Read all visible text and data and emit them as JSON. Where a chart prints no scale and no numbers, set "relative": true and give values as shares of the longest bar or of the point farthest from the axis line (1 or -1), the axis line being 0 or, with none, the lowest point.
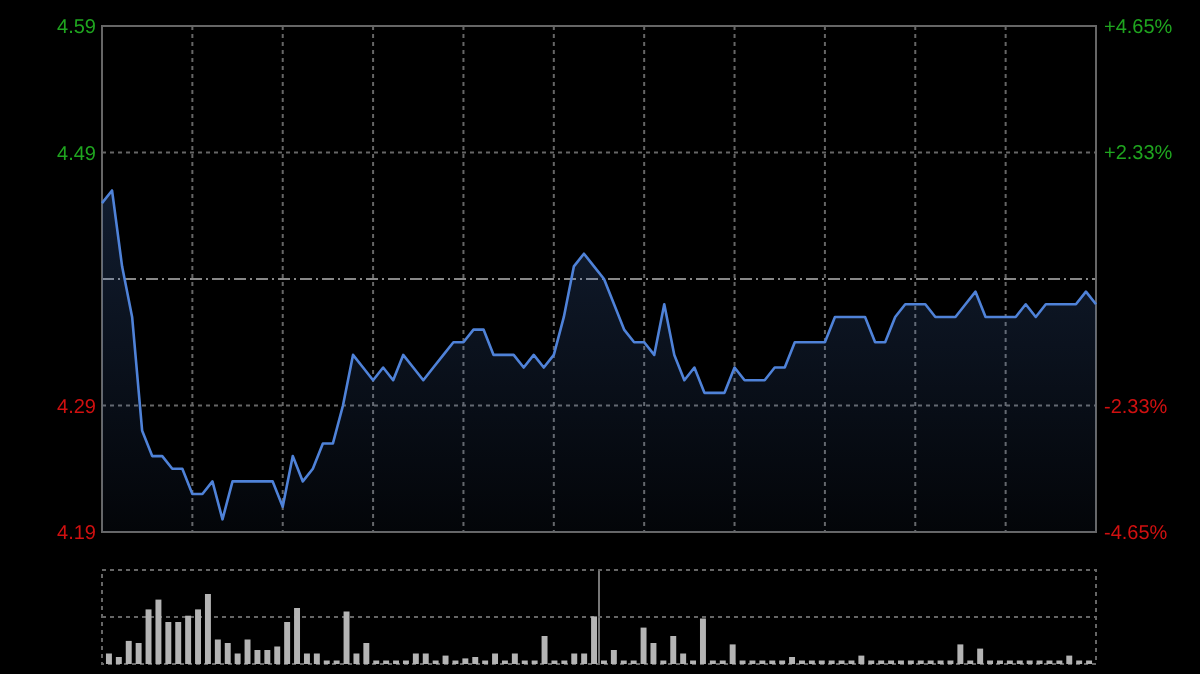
{
  "chart_data": [
    {
      "type": "area",
      "categories": [
        null,
        null,
        null,
        null,
        null,
        null,
        null,
        null,
        null,
        null,
        null,
        null,
        null,
        null,
        null,
        null,
        null,
        null,
        null,
        null,
        null,
        null,
        null,
        null,
        null,
        null,
        null,
        null,
        null,
        null,
        null,
        null,
        null,
        null,
        null,
        null,
        null,
        null,
        null,
        null,
        null,
        null,
        null,
        null,
        null,
        null,
        null,
        null,
        null,
        null,
        null,
        null,
        null,
        null,
        null,
        null,
        null,
        null,
        null,
        null,
        null,
        null,
        null,
        null,
        null,
        null,
        null,
        null,
        null,
        null,
        null,
        null,
        null,
        null,
        null,
        null,
        null,
        null,
        null,
        null,
        null,
        null,
        null,
        null,
        null,
        null,
        null,
        null,
        null,
        null,
        null,
        null,
        null,
        null,
        null,
        null,
        null,
        null,
        null,
        null
      ],
      "series": [
        {
          "color": "#4f82d8",
          "values": [
            4.45,
            4.46,
            4.4,
            4.36,
            4.27,
            4.25,
            4.25,
            4.24,
            4.24,
            4.22,
            4.22,
            4.23,
            4.2,
            4.23,
            4.23,
            4.23,
            4.23,
            4.23,
            4.21,
            4.25,
            4.23,
            4.24,
            4.26,
            4.26,
            4.29,
            4.33,
            4.32,
            4.31,
            4.32,
            4.31,
            4.33,
            4.32,
            4.31,
            4.32,
            4.33,
            4.34,
            4.34,
            4.35,
            4.35,
            4.33,
            4.33,
            4.33,
            4.32,
            4.33,
            4.32,
            4.33,
            4.36,
            4.4,
            4.41,
            4.4,
            4.39,
            4.37,
            4.35,
            4.34,
            4.34,
            4.33,
            4.37,
            4.33,
            4.31,
            4.32,
            4.3,
            4.3,
            4.3,
            4.32,
            4.31,
            4.31,
            4.31,
            4.32,
            4.32,
            4.34,
            4.34,
            4.34,
            4.34,
            4.36,
            4.36,
            4.36,
            4.36,
            4.34,
            4.34,
            4.36,
            4.37,
            4.37,
            4.37,
            4.36,
            4.36,
            4.36,
            4.37,
            4.38,
            4.36,
            4.36,
            4.36,
            4.36,
            4.37,
            4.36,
            4.37,
            4.37,
            4.37,
            4.37,
            4.38,
            4.37
          ]
        }
      ],
      "ylim": [
        4.19,
        4.59
      ],
      "yticks": [
        4.19,
        4.29,
        4.49,
        4.59
      ],
      "ref_lines": [
        {
          "axis": "y",
          "value": 4.39,
          "line_style": "dashed",
          "color": "#888888"
        }
      ],
      "y2lim": [
        -4.65,
        4.65
      ],
      "y2ticks": [
        {
          "value": -4.65,
          "label": "-4.65%"
        },
        {
          "value": -2.33,
          "label": "-2.33%"
        },
        {
          "value": 2.33,
          "label": "+2.33%"
        },
        {
          "value": 4.65,
          "label": "+4.65%"
        }
      ],
      "grid": true
    },
    {
      "type": "bar",
      "relative": true,
      "grid": true,
      "ref_lines": [
        {
          "axis": "y",
          "value": 0.67,
          "line_style": "dotted",
          "color": "#666666"
        }
      ],
      "categories": [
        null,
        null,
        null,
        null,
        null,
        null,
        null,
        null,
        null,
        null,
        null,
        null,
        null,
        null,
        null,
        null,
        null,
        null,
        null,
        null,
        null,
        null,
        null,
        null,
        null,
        null,
        null,
        null,
        null,
        null,
        null,
        null,
        null,
        null,
        null,
        null,
        null,
        null,
        null,
        null,
        null,
        null,
        null,
        null,
        null,
        null,
        null,
        null,
        null,
        null,
        null,
        null,
        null,
        null,
        null,
        null,
        null,
        null,
        null,
        null,
        null,
        null,
        null,
        null,
        null,
        null,
        null,
        null,
        null,
        null,
        null,
        null,
        null,
        null,
        null,
        null,
        null,
        null,
        null,
        null,
        null,
        null,
        null,
        null,
        null,
        null,
        null,
        null,
        null,
        null,
        null,
        null,
        null,
        null,
        null,
        null,
        null,
        null,
        null,
        null
      ],
      "series": [
        {
          "color": "#b4b4b4",
          "values": [
            0.15,
            0.1,
            0.33,
            0.3,
            0.78,
            0.92,
            0.6,
            0.6,
            0.69,
            0.78,
            1,
            0.35,
            0.3,
            0.15,
            0.35,
            0.2,
            0.2,
            0.25,
            0.6,
            0.8,
            0.15,
            0.15,
            0.05,
            0.05,
            0.75,
            0.15,
            0.3,
            0.05,
            0.05,
            0.05,
            0.05,
            0.15,
            0.15,
            0.05,
            0.12,
            0.05,
            0.08,
            0.1,
            0.05,
            0.15,
            0.05,
            0.15,
            0.05,
            0.05,
            0.4,
            0.05,
            0.05,
            0.15,
            0.15,
            0.68,
            0.05,
            0.2,
            0.05,
            0.05,
            0.52,
            0.3,
            0.05,
            0.4,
            0.15,
            0.05,
            0.65,
            0.05,
            0.05,
            0.28,
            0.05,
            0.05,
            0.05,
            0.05,
            0.05,
            0.1,
            0.05,
            0.05,
            0.05,
            0.05,
            0.05,
            0.05,
            0.12,
            0.05,
            0.05,
            0.05,
            0.05,
            0.05,
            0.05,
            0.05,
            0.05,
            0.05,
            0.28,
            0.05,
            0.22,
            0.05,
            0.05,
            0.05,
            0.05,
            0.05,
            0.05,
            0.05,
            0.05,
            0.12,
            0.05,
            0.05
          ]
        }
      ]
    }
  ]
}
